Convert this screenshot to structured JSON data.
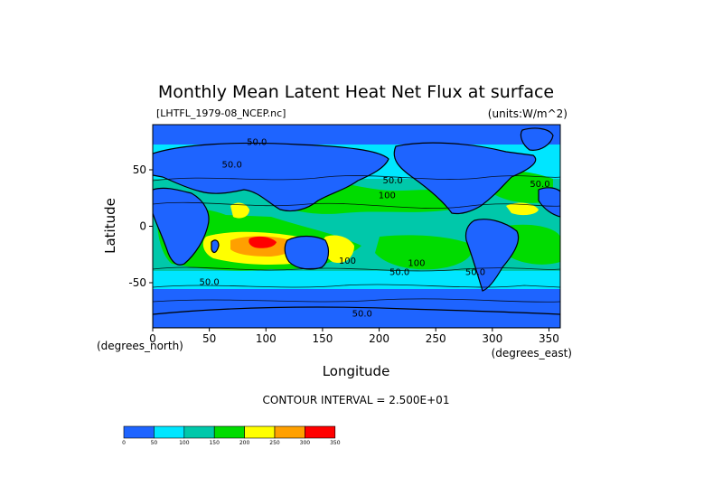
{
  "chart_data": {
    "type": "heatmap",
    "title": "Monthly Mean Latent Heat Net Flux at surface",
    "file_label": "[LHTFL_1979-08_NCEP.nc]",
    "units_label": "(units:W/m^2)",
    "xlabel": "Longitude",
    "ylabel": "Latitude",
    "x_units_label": "(degrees_east)",
    "y_units_label": "(degrees_north)",
    "xlim": [
      0,
      360
    ],
    "ylim": [
      -90,
      90
    ],
    "x_ticks": [
      0,
      50,
      100,
      150,
      200,
      250,
      300,
      350
    ],
    "y_ticks": [
      50,
      0,
      -50
    ],
    "contour_interval_text": "CONTOUR INTERVAL = 2.500E+01",
    "contour_labels": [
      {
        "text": "50.0",
        "lon": 92,
        "lat": 72
      },
      {
        "text": "50.0",
        "lon": 70,
        "lat": 52
      },
      {
        "text": "50.0",
        "lon": 212,
        "lat": 38
      },
      {
        "text": "50.0",
        "lon": 342,
        "lat": 35
      },
      {
        "text": "100",
        "lon": 207,
        "lat": 25
      },
      {
        "text": "100",
        "lon": 233,
        "lat": -35
      },
      {
        "text": "100",
        "lon": 172,
        "lat": -33
      },
      {
        "text": "50.0",
        "lon": 218,
        "lat": -43
      },
      {
        "text": "50.0",
        "lon": 285,
        "lat": -43
      },
      {
        "text": "50.0",
        "lon": 50,
        "lat": -52
      },
      {
        "text": "50.0",
        "lon": 185,
        "lat": -80
      }
    ],
    "colorbar": {
      "colors": [
        "#1e64ff",
        "#00e6ff",
        "#00c8aa",
        "#00dc00",
        "#ffff00",
        "#ffa000",
        "#ff0000"
      ],
      "tick_labels": [
        "0",
        "50",
        "100",
        "150",
        "200",
        "250",
        "300",
        "350"
      ]
    }
  }
}
